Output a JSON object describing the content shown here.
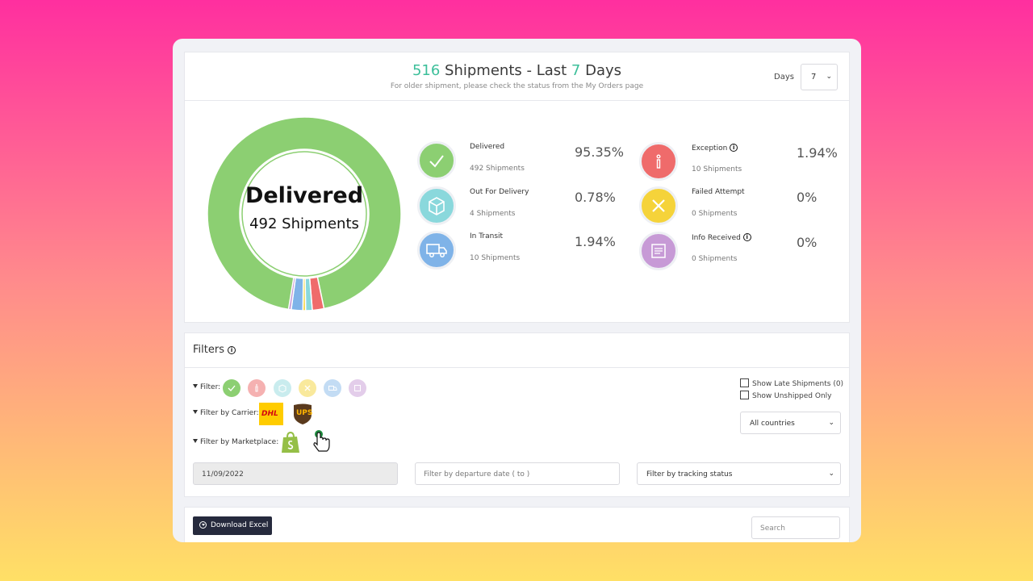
{
  "header": {
    "count": "516",
    "title_mid": " Shipments - Last ",
    "days_value": "7",
    "title_end": " Days",
    "subtitle": "For older shipment, please check the status from the My Orders page",
    "days_label": "Days",
    "days_selected": "7"
  },
  "donut": {
    "label": "Delivered",
    "sub": "492 Shipments"
  },
  "chart_data": {
    "type": "pie",
    "categories": [
      "Delivered",
      "Exception",
      "Out For Delivery",
      "Failed Attempt",
      "In Transit",
      "Info Received"
    ],
    "values": [
      95.35,
      1.94,
      0.78,
      0,
      1.94,
      0
    ],
    "counts": [
      492,
      10,
      4,
      0,
      10,
      0
    ],
    "colors": [
      "#8ccf72",
      "#ef6b6b",
      "#8ad8dc",
      "#f5d33a",
      "#7fb3e8",
      "#c79ad6"
    ]
  },
  "stats": [
    {
      "name": "Delivered",
      "count": "492 Shipments",
      "pct": "95.35%",
      "color": "#8ccf72",
      "icon": "check-icon"
    },
    {
      "name": "Out For Delivery",
      "count": "4 Shipments",
      "pct": "0.78%",
      "color": "#8ad8dc",
      "icon": "box-icon"
    },
    {
      "name": "In Transit",
      "count": "10 Shipments",
      "pct": "1.94%",
      "color": "#7fb3e8",
      "icon": "truck-icon"
    },
    {
      "name": "Exception",
      "count": "10 Shipments",
      "pct": "1.94%",
      "color": "#ef6b6b",
      "icon": "info-icon"
    },
    {
      "name": "Failed Attempt",
      "count": "0 Shipments",
      "pct": "0%",
      "color": "#f5d33a",
      "icon": "x-icon"
    },
    {
      "name": "Info Received",
      "count": "0 Shipments",
      "pct": "0%",
      "color": "#c79ad6",
      "icon": "document-icon"
    }
  ],
  "filters": {
    "title": "Filters",
    "status_label": "Filter:",
    "carrier_label": "Filter by Carrier:",
    "marketplace_label": "Filter by Marketplace:",
    "carriers": [
      "DHL",
      "UPS"
    ],
    "late_label": "Show Late Shipments (0)",
    "unshipped_label": "Show Unshipped Only",
    "country_selected": "All countries",
    "date_from": "11/09/2022",
    "date_to_placeholder": "Filter by departure date ( to )",
    "tracking_status_selected": "Filter by tracking status"
  },
  "bottom": {
    "download_label": "Download Excel",
    "search_placeholder": "Search"
  }
}
